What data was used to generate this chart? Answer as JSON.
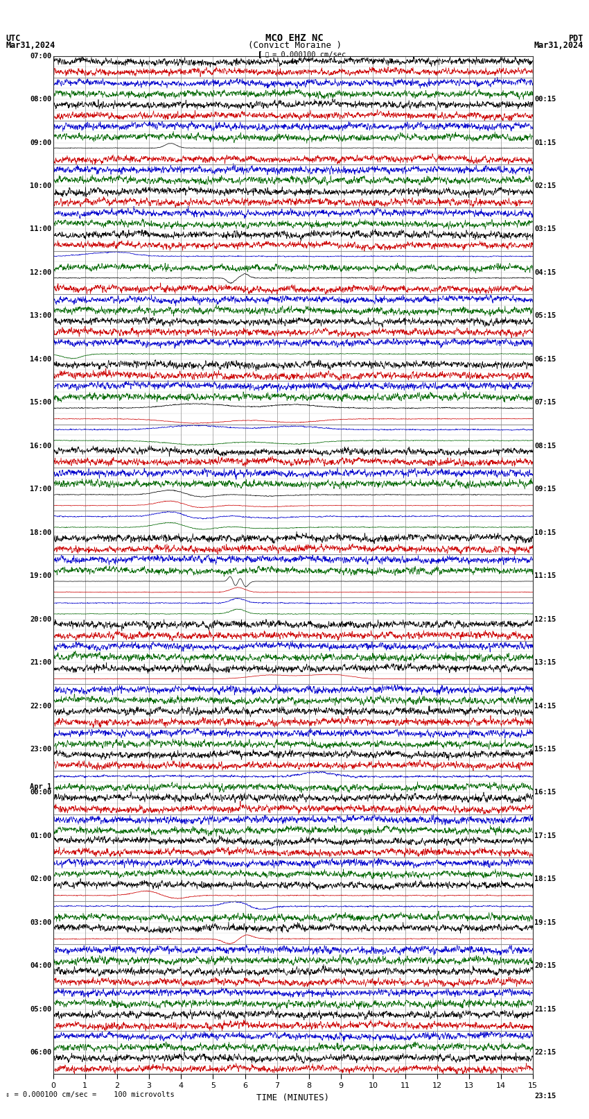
{
  "title_line1": "MCO EHZ NC",
  "title_line2": "(Convict Moraine )",
  "scale_text": "= 0.000100 cm/sec",
  "footer_text": "= 0.000100 cm/sec =    100 microvolts",
  "utc_label": "UTC",
  "utc_date": "Mar31,2024",
  "pdt_label": "PDT",
  "pdt_date": "Mar31,2024",
  "xlabel": "TIME (MINUTES)",
  "bg_color": "#ffffff",
  "grid_color": "#888888",
  "trace_colors": [
    "#000000",
    "#cc0000",
    "#0000cc",
    "#006600"
  ],
  "total_rows": 94,
  "hour_labels_left": [
    "07:00",
    "08:00",
    "09:00",
    "10:00",
    "11:00",
    "12:00",
    "13:00",
    "14:00",
    "15:00",
    "16:00",
    "17:00",
    "18:00",
    "19:00",
    "20:00",
    "21:00",
    "22:00",
    "23:00",
    "00:00",
    "01:00",
    "02:00",
    "03:00",
    "04:00",
    "05:00",
    "06:00"
  ],
  "hour_labels_right": [
    "00:15",
    "01:15",
    "02:15",
    "03:15",
    "04:15",
    "05:15",
    "06:15",
    "07:15",
    "08:15",
    "09:15",
    "10:15",
    "11:15",
    "12:15",
    "13:15",
    "14:15",
    "15:15",
    "16:15",
    "17:15",
    "18:15",
    "19:15",
    "20:15",
    "21:15",
    "22:15",
    "23:15"
  ],
  "apr1_row": 68,
  "minutes": 15
}
